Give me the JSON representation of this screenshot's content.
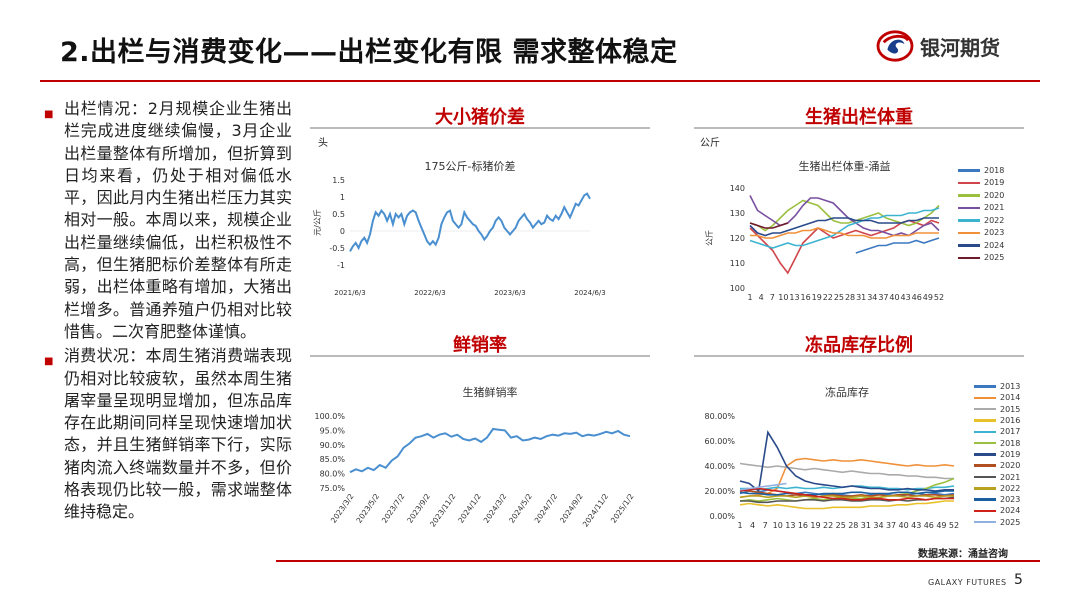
{
  "header": {
    "title": "2.出栏与消费变化——出栏变化有限 需求整体稳定",
    "logo_text": "银河期货"
  },
  "left": {
    "bullets": [
      "出栏情况：2月规模企业生猪出栏完成进度继续偏慢，3月企业出栏量整体有所增加，但折算到日均来看，仍处于相对偏低水平，因此月内生猪出栏压力其实相对一般。本周以来，规模企业出栏量继续偏低，出栏积极性不高，但生猪肥标价差整体有所走弱，出栏体重略有增加，大猪出栏增多。普通养殖户仍相对比较惜售。二次育肥整体谨慎。",
      "消费状况：本周生猪消费端表现仍相对比较疲软，虽然本周生猪屠宰量呈现明显增加，但冻品库存在此期间同样呈现快速增加状态，并且生猪鲜销率下行，实际猪肉流入终端数量并不多，但价格表现仍比较一般，需求端整体维持稳定。"
    ]
  },
  "panels": {
    "p1": {
      "title": "大小猪价差",
      "unit": "头"
    },
    "p2": {
      "title": "生猪出栏体重",
      "unit": "公斤"
    },
    "p3": {
      "title": "鲜销率"
    },
    "p4": {
      "title": "冻品库存比例"
    }
  },
  "chart_data": [
    {
      "type": "line",
      "title": "175公斤-标猪价差",
      "ylabel": "元/公斤",
      "ylim": [
        -1,
        1.5
      ],
      "yticks": [
        "1.5",
        "1",
        "0.5",
        "0",
        "-0.5",
        "-1"
      ],
      "xticks": [
        "2021/6/3",
        "2022/6/3",
        "2023/6/3",
        "2024/6/3"
      ],
      "series": [
        {
          "color": "#4a8fd0",
          "values": [
            -0.6,
            -0.45,
            -0.35,
            -0.5,
            -0.3,
            -0.2,
            -0.35,
            -0.1,
            0.3,
            0.55,
            0.45,
            0.6,
            0.5,
            0.3,
            0.5,
            0.2,
            0.5,
            0.4,
            0.5,
            0.2,
            0.45,
            0.55,
            0.6,
            0.55,
            0.3,
            0.1,
            -0.1,
            -0.3,
            -0.4,
            -0.3,
            -0.4,
            -0.2,
            0.2,
            0.4,
            0.55,
            0.6,
            0.3,
            0.2,
            0.1,
            0.2,
            0.55,
            0.4,
            0.3,
            0.2,
            0.15,
            0.0,
            -0.1,
            -0.25,
            -0.15,
            0.0,
            0.1,
            0.3,
            0.4,
            0.3,
            0.1,
            0.0,
            -0.1,
            0.0,
            0.1,
            0.3,
            0.4,
            0.5,
            0.35,
            0.25,
            0.1,
            0.2,
            0.3,
            0.2,
            0.25,
            0.45,
            0.35,
            0.3,
            0.45,
            0.35,
            0.5,
            0.7,
            0.55,
            0.4,
            0.6,
            0.8,
            0.75,
            0.9,
            1.05,
            1.1,
            0.95
          ]
        }
      ]
    },
    {
      "type": "line",
      "title": "生猪出栏体重-涌益",
      "ylabel": "公斤",
      "ylim": [
        100,
        140
      ],
      "yticks": [
        "140",
        "130",
        "120",
        "110",
        "100"
      ],
      "xticks": [
        "1",
        "4",
        "7",
        "10",
        "13",
        "16",
        "19",
        "22",
        "25",
        "28",
        "31",
        "34",
        "37",
        "40",
        "43",
        "46",
        "49",
        "52"
      ],
      "series": [
        {
          "name": "2018",
          "color": "#3b78c0",
          "values": [
            null,
            null,
            null,
            null,
            null,
            null,
            null,
            null,
            null,
            null,
            null,
            null,
            null,
            null,
            114,
            115,
            116,
            117,
            117,
            118,
            118,
            118,
            119,
            118,
            119,
            120
          ]
        },
        {
          "name": "2019",
          "color": "#d0454a",
          "values": [
            124,
            121,
            118,
            115,
            110,
            106,
            112,
            118,
            121,
            124,
            122,
            120,
            121,
            122,
            123,
            122,
            121,
            122,
            123,
            124,
            126,
            127,
            126,
            125,
            127,
            126
          ]
        },
        {
          "name": "2020",
          "color": "#9bc040",
          "values": [
            126,
            125,
            123,
            125,
            128,
            131,
            133,
            135,
            134,
            133,
            130,
            127,
            126,
            126,
            127,
            128,
            129,
            130,
            128,
            127,
            126,
            125,
            126,
            128,
            130,
            133
          ]
        },
        {
          "name": "2021",
          "color": "#7a4fa0",
          "values": [
            137,
            131,
            129,
            127,
            125,
            126,
            129,
            133,
            136,
            136,
            135,
            134,
            131,
            128,
            126,
            124,
            123,
            123,
            122,
            121,
            122,
            121,
            123,
            125,
            126,
            123
          ]
        },
        {
          "name": "2022",
          "color": "#3cb4d0",
          "values": [
            119,
            118,
            117,
            116,
            117,
            118,
            117,
            117,
            118,
            119,
            120,
            121,
            123,
            125,
            126,
            127,
            128,
            128,
            129,
            129,
            129,
            130,
            130,
            131,
            131,
            132
          ]
        },
        {
          "name": "2023",
          "color": "#f0913a",
          "values": [
            121,
            121,
            120,
            120,
            121,
            122,
            122,
            123,
            123,
            124,
            123,
            122,
            122,
            121,
            121,
            121,
            120,
            120,
            120,
            121,
            121,
            121,
            122,
            122,
            122,
            122
          ]
        },
        {
          "name": "2024",
          "color": "#2a4a8a",
          "values": [
            125,
            122,
            121,
            122,
            122,
            123,
            124,
            125,
            126,
            127,
            127,
            128,
            128,
            128,
            127,
            127,
            127,
            126,
            126,
            126,
            126,
            127,
            127,
            128,
            128,
            128
          ]
        },
        {
          "name": "2025",
          "color": "#6e1a2a",
          "values": [
            126,
            125,
            124,
            124,
            125,
            126,
            null,
            null,
            null,
            null,
            null,
            null,
            null,
            null,
            null,
            null,
            null,
            null,
            null,
            null,
            null,
            null,
            null,
            null,
            null,
            null
          ]
        }
      ]
    },
    {
      "type": "line",
      "title": "生猪鲜销率",
      "ylim": [
        75,
        100
      ],
      "yticks": [
        "100.0%",
        "95.0%",
        "90.0%",
        "85.0%",
        "80.0%",
        "75.0%"
      ],
      "xticks": [
        "2023/3/2",
        "2023/5/2",
        "2023/7/2",
        "2023/9/2",
        "2023/11/2",
        "2024/1/2",
        "2024/3/2",
        "2024/5/2",
        "2024/7/2",
        "2024/9/2",
        "2024/11/2",
        "2025/1/2"
      ],
      "series": [
        {
          "color": "#4a8fd0",
          "values": [
            80.5,
            81.5,
            80.8,
            82.0,
            81.2,
            83.0,
            82.0,
            84.5,
            86.0,
            89.0,
            90.5,
            92.5,
            93.0,
            93.8,
            92.5,
            93.5,
            94.0,
            92.8,
            93.5,
            92.0,
            91.5,
            92.2,
            91.0,
            92.5,
            95.5,
            95.2,
            95.0,
            92.5,
            93.0,
            91.5,
            91.8,
            92.5,
            92.0,
            93.0,
            93.5,
            93.2,
            94.0,
            93.8,
            94.2,
            93.0,
            93.5,
            93.2,
            93.8,
            94.5,
            94.0,
            94.8,
            93.5,
            93.0
          ]
        }
      ]
    },
    {
      "type": "line",
      "title": "冻品库存",
      "ylim": [
        0,
        80
      ],
      "yticks": [
        "80.00%",
        "60.00%",
        "40.00%",
        "20.00%",
        "0.00%"
      ],
      "xticks": [
        "1",
        "4",
        "7",
        "10",
        "13",
        "16",
        "19",
        "22",
        "25",
        "28",
        "31",
        "34",
        "37",
        "40",
        "43",
        "46",
        "49",
        "52"
      ],
      "series": [
        {
          "name": "2013",
          "color": "#3b78c0",
          "values": [
            18,
            20,
            19,
            21,
            20,
            19,
            18,
            19,
            18,
            17,
            18,
            17,
            16,
            16,
            17,
            18,
            17,
            16,
            17,
            18,
            17,
            18,
            17,
            18
          ]
        },
        {
          "name": "2014",
          "color": "#f0913a",
          "values": [
            15,
            16,
            17,
            18,
            22,
            40,
            45,
            46,
            45,
            44,
            45,
            44,
            44,
            45,
            44,
            43,
            42,
            41,
            40,
            41,
            40,
            40,
            41,
            40
          ]
        },
        {
          "name": "2015",
          "color": "#aaaaaa",
          "values": [
            42,
            41,
            40,
            39,
            40,
            39,
            38,
            37,
            38,
            37,
            36,
            35,
            36,
            35,
            34,
            34,
            33,
            33,
            32,
            32,
            31,
            31,
            30,
            30
          ]
        },
        {
          "name": "2016",
          "color": "#e8c02a",
          "values": [
            9,
            10,
            9,
            8,
            9,
            8,
            7,
            6,
            6,
            6,
            7,
            7,
            7,
            7,
            8,
            8,
            8,
            9,
            9,
            10,
            10,
            11,
            12,
            12
          ]
        },
        {
          "name": "2017",
          "color": "#3cb4d0",
          "values": [
            22,
            22,
            21,
            22,
            23,
            22,
            23,
            22,
            22,
            23,
            22,
            23,
            24,
            24,
            23,
            23,
            22,
            22,
            21,
            22,
            22,
            23,
            23,
            24
          ]
        },
        {
          "name": "2018",
          "color": "#9bc040",
          "values": [
            12,
            13,
            12,
            13,
            14,
            13,
            12,
            13,
            14,
            13,
            14,
            15,
            14,
            14,
            15,
            15,
            16,
            17,
            18,
            20,
            22,
            25,
            27,
            30
          ]
        },
        {
          "name": "2019",
          "color": "#2a4a8a",
          "values": [
            28,
            26,
            20,
            67,
            55,
            40,
            32,
            28,
            26,
            25,
            24,
            23,
            24,
            23,
            22,
            22,
            21,
            21,
            22,
            21,
            21,
            20,
            21,
            21
          ]
        },
        {
          "name": "2020",
          "color": "#b05020",
          "values": [
            21,
            20,
            19,
            18,
            17,
            16,
            17,
            16,
            15,
            16,
            17,
            16,
            16,
            17,
            16,
            17,
            16,
            17,
            17,
            16,
            17,
            17,
            16,
            17
          ]
        },
        {
          "name": "2021",
          "color": "#555555",
          "values": [
            12,
            12,
            11,
            11,
            12,
            12,
            12,
            13,
            13,
            12,
            13,
            13,
            12,
            12,
            13,
            13,
            12,
            13,
            12,
            13,
            13,
            14,
            14,
            15
          ]
        },
        {
          "name": "2022",
          "color": "#b8a020",
          "values": [
            15,
            16,
            16,
            15,
            16,
            16,
            15,
            16,
            15,
            16,
            16,
            15,
            15,
            16,
            15,
            15,
            16,
            16,
            15,
            16,
            16,
            15,
            16,
            16
          ]
        },
        {
          "name": "2023",
          "color": "#1a5fa0",
          "values": [
            19,
            18,
            18,
            17,
            17,
            18,
            18,
            17,
            17,
            18,
            18,
            18,
            19,
            19,
            18,
            18,
            18,
            19,
            19,
            18,
            19,
            19,
            20,
            20
          ]
        },
        {
          "name": "2024",
          "color": "#d0201a",
          "values": [
            20,
            21,
            22,
            21,
            20,
            19,
            18,
            17,
            16,
            15,
            14,
            14,
            13,
            13,
            14,
            14,
            13,
            13,
            14,
            14,
            13,
            14,
            14,
            14
          ]
        },
        {
          "name": "2025",
          "color": "#90b0e0",
          "values": [
            21,
            22,
            23,
            24,
            25,
            26,
            null,
            null,
            null,
            null,
            null,
            null,
            null,
            null,
            null,
            null,
            null,
            null,
            null,
            null,
            null,
            null,
            null,
            null
          ]
        }
      ]
    }
  ],
  "footer": {
    "source": "数据来源：涌益咨询",
    "brand": "GALAXY FUTURES",
    "page": "5"
  }
}
